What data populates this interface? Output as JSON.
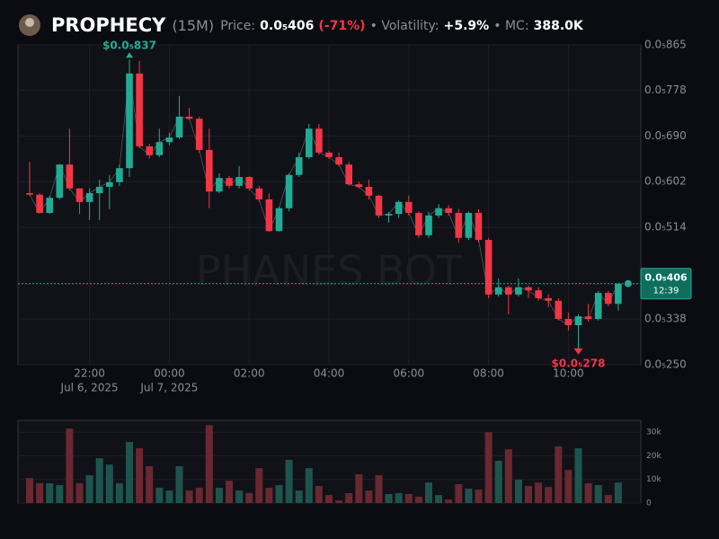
{
  "header": {
    "name": "PROPHECY",
    "interval": "(15M)",
    "price_caption": "Price:",
    "price": "0.0₅406",
    "change": "(-71%)",
    "volatility_caption": "• Volatility:",
    "volatility": "+5.9%",
    "mc_caption": "• MC:",
    "mc": "388.0K"
  },
  "watermark": "PHANES BOT",
  "chart_data": [
    {
      "type": "candlestick",
      "up_color": "#22ab94",
      "down_color": "#f23645",
      "open": [
        5.8e-06,
        5.77e-06,
        5.42e-06,
        5.71e-06,
        6.35e-06,
        5.89e-06,
        5.63e-06,
        5.8e-06,
        5.92e-06,
        6.01e-06,
        6.28e-06,
        8.1e-06,
        6.7e-06,
        6.53e-06,
        6.78e-06,
        6.87e-06,
        7.27e-06,
        7.23e-06,
        6.63e-06,
        5.83e-06,
        6.09e-06,
        5.94e-06,
        6.11e-06,
        5.89e-06,
        5.68e-06,
        5.07e-06,
        5.51e-06,
        6.15e-06,
        6.49e-06,
        7.04e-06,
        6.58e-06,
        6.49e-06,
        6.35e-06,
        5.97e-06,
        5.92e-06,
        5.75e-06,
        5.37e-06,
        5.4e-06,
        5.63e-06,
        5.42e-06,
        4.99e-06,
        5.37e-06,
        5.51e-06,
        5.42e-06,
        4.94e-06,
        5.42e-06,
        4.9e-06,
        3.85e-06,
        3.99e-06,
        3.85e-06,
        3.99e-06,
        3.93e-06,
        3.78e-06,
        3.73e-06,
        3.38e-06,
        3.26e-06,
        3.43e-06,
        3.38e-06,
        3.88e-06,
        3.67e-06
      ],
      "high": [
        6.4e-06,
        5.8e-06,
        5.75e-06,
        6.35e-06,
        7.04e-06,
        5.89e-06,
        5.89e-06,
        6.06e-06,
        6.15e-06,
        6.35e-06,
        8.37e-06,
        8.34e-06,
        6.75e-06,
        7.04e-06,
        6.96e-06,
        7.67e-06,
        7.44e-06,
        7.27e-06,
        7.04e-06,
        6.18e-06,
        6.13e-06,
        6.32e-06,
        6.13e-06,
        5.94e-06,
        5.8e-06,
        5.54e-06,
        6.18e-06,
        6.58e-06,
        7.13e-06,
        7.13e-06,
        6.61e-06,
        6.58e-06,
        6.4e-06,
        6.02e-06,
        6.06e-06,
        5.77e-06,
        5.44e-06,
        5.66e-06,
        5.75e-06,
        5.45e-06,
        5.44e-06,
        5.59e-06,
        5.57e-06,
        5.49e-06,
        5.45e-06,
        5.49e-06,
        4.94e-06,
        4.16e-06,
        4.02e-06,
        4.16e-06,
        4.02e-06,
        3.99e-06,
        3.85e-06,
        3.78e-06,
        3.5e-06,
        3.47e-06,
        3.67e-06,
        3.92e-06,
        3.92e-06,
        4.06e-06
      ],
      "low": [
        5.75e-06,
        5.4e-06,
        5.4e-06,
        5.68e-06,
        5.85e-06,
        5.4e-06,
        5.28e-06,
        5.28e-06,
        5.49e-06,
        5.94e-06,
        6.11e-06,
        6.66e-06,
        6.46e-06,
        6.49e-06,
        6.72e-06,
        6.84e-06,
        7.2e-06,
        6.58e-06,
        5.51e-06,
        5.8e-06,
        5.89e-06,
        5.89e-06,
        5.85e-06,
        5.63e-06,
        5.06e-06,
        5.06e-06,
        5.45e-06,
        6.11e-06,
        6.46e-06,
        6.54e-06,
        6.46e-06,
        6.32e-06,
        5.94e-06,
        5.89e-06,
        5.68e-06,
        5.32e-06,
        5.23e-06,
        5.32e-06,
        5.37e-06,
        4.94e-06,
        4.94e-06,
        5.32e-06,
        5.37e-06,
        4.85e-06,
        4.9e-06,
        4.85e-06,
        3.78e-06,
        3.81e-06,
        3.47e-06,
        3.81e-06,
        3.78e-06,
        3.73e-06,
        3.61e-06,
        3.35e-06,
        3.16e-06,
        2.78e-06,
        3.33e-06,
        3.35e-06,
        3.62e-06,
        3.54e-06
      ],
      "close": [
        5.77e-06,
        5.42e-06,
        5.71e-06,
        6.35e-06,
        5.89e-06,
        5.63e-06,
        5.8e-06,
        5.92e-06,
        6.01e-06,
        6.28e-06,
        8.1e-06,
        6.7e-06,
        6.53e-06,
        6.78e-06,
        6.87e-06,
        7.27e-06,
        7.23e-06,
        6.63e-06,
        5.83e-06,
        6.09e-06,
        5.94e-06,
        6.11e-06,
        5.89e-06,
        5.68e-06,
        5.07e-06,
        5.51e-06,
        6.15e-06,
        6.49e-06,
        7.04e-06,
        6.58e-06,
        6.49e-06,
        6.35e-06,
        5.97e-06,
        5.92e-06,
        5.75e-06,
        5.37e-06,
        5.4e-06,
        5.63e-06,
        5.42e-06,
        4.99e-06,
        5.37e-06,
        5.51e-06,
        5.42e-06,
        4.94e-06,
        5.42e-06,
        4.9e-06,
        3.85e-06,
        3.99e-06,
        3.85e-06,
        3.99e-06,
        3.93e-06,
        3.78e-06,
        3.73e-06,
        3.38e-06,
        3.26e-06,
        3.43e-06,
        3.38e-06,
        3.88e-06,
        3.67e-06,
        4.06e-06
      ],
      "ylim": [
        2.5e-06,
        8.65e-06
      ],
      "yticks": [
        {
          "value": 8.65e-06,
          "label": "0.0₅865"
        },
        {
          "value": 7.78e-06,
          "label": "0.0₅778"
        },
        {
          "value": 6.9e-06,
          "label": "0.0₅690"
        },
        {
          "value": 6.02e-06,
          "label": "0.0₅602"
        },
        {
          "value": 5.14e-06,
          "label": "0.0₅514"
        },
        {
          "value": 3.38e-06,
          "label": "0.0₅338"
        },
        {
          "value": 2.5e-06,
          "label": "0.0₅250"
        }
      ],
      "xticks": [
        {
          "value": 6,
          "label": "22:00"
        },
        {
          "value": 14,
          "label": "00:00"
        },
        {
          "value": 22,
          "label": "02:00"
        },
        {
          "value": 30,
          "label": "04:00"
        },
        {
          "value": 38,
          "label": "06:00"
        },
        {
          "value": 46,
          "label": "08:00"
        },
        {
          "value": 54,
          "label": "10:00"
        }
      ],
      "xtick_dates": [
        {
          "value": 6,
          "label": "Jul 6, 2025"
        },
        {
          "value": 14,
          "label": "Jul 7, 2025"
        }
      ],
      "high_label": "$0.0₅837",
      "low_label": "$0.0₅278",
      "last_price_label": "0.0₅406",
      "countdown": "12:39",
      "grid": true
    },
    {
      "type": "bar",
      "values": [
        10600,
        8400,
        8400,
        7600,
        31500,
        8400,
        11800,
        19000,
        16300,
        8400,
        25900,
        23200,
        15600,
        6500,
        5300,
        15600,
        5300,
        6500,
        33000,
        6500,
        9500,
        5300,
        4200,
        14800,
        6500,
        7600,
        18300,
        5300,
        14800,
        7200,
        3400,
        1100,
        4200,
        12200,
        5300,
        11800,
        3800,
        4200,
        3800,
        2700,
        8700,
        3400,
        1500,
        8000,
        6100,
        5700,
        30000,
        17900,
        22800,
        9900,
        7200,
        8700,
        6800,
        24000,
        14000,
        23200,
        8400,
        7600,
        3400,
        8700
      ],
      "ylim": [
        0,
        35000
      ],
      "yticks": [
        0,
        {
          "value": 10000,
          "label": "10k"
        },
        {
          "value": 20000,
          "label": "20k"
        },
        {
          "value": 30000,
          "label": "30k"
        }
      ],
      "grid": true
    }
  ]
}
